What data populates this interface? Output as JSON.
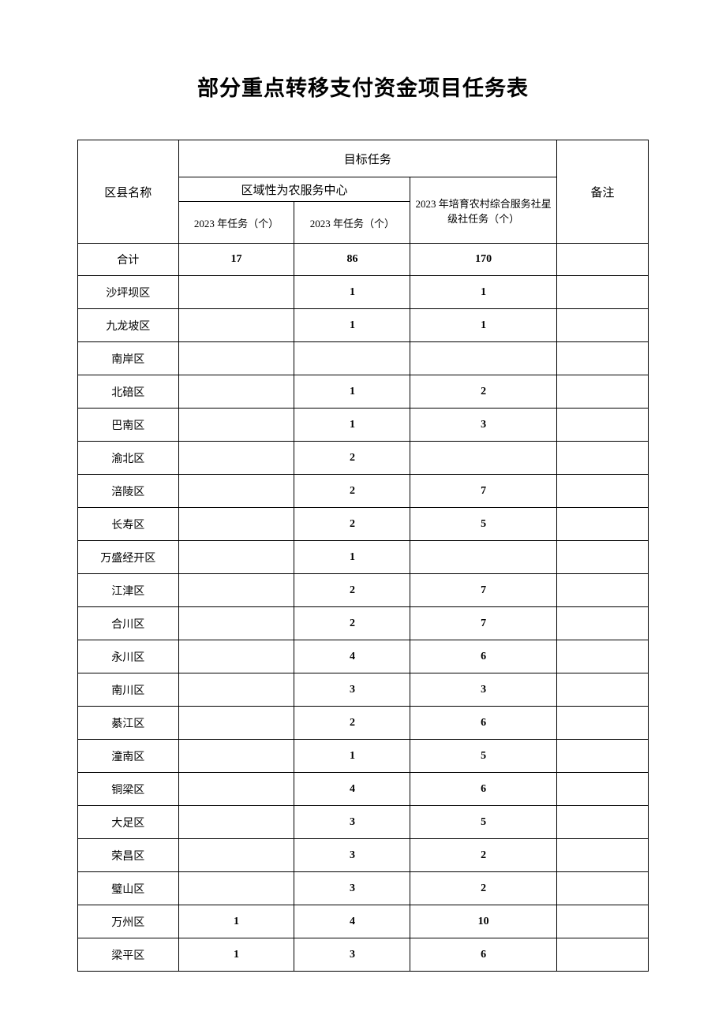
{
  "title": "部分重点转移支付资金项目任务表",
  "colors": {
    "background": "#ffffff",
    "border": "#000000",
    "text": "#000000"
  },
  "typography": {
    "title_fontsize": 27,
    "header_fontsize": 15,
    "subheader_fontsize": 13,
    "cell_fontsize": 14,
    "font_family": "SimSun"
  },
  "headers": {
    "district": "区县名称",
    "target_task": "目标任务",
    "regional_service_center": "区域性为农服务中心",
    "task_2023_a": "2023 年任务（个）",
    "task_2023_b": "2023 年任务（个）",
    "rural_service_task": "2023 年培育农村综合服务社星级社任务（个）",
    "remark": "备注"
  },
  "summary": {
    "label": "合计",
    "v1": "17",
    "v2": "86",
    "v3": "170",
    "note": ""
  },
  "rows": [
    {
      "name": "沙坪坝区",
      "v1": "",
      "v2": "1",
      "v3": "1",
      "note": ""
    },
    {
      "name": "九龙坡区",
      "v1": "",
      "v2": "1",
      "v3": "1",
      "note": ""
    },
    {
      "name": "南岸区",
      "v1": "",
      "v2": "",
      "v3": "",
      "note": ""
    },
    {
      "name": "北碚区",
      "v1": "",
      "v2": "1",
      "v3": "2",
      "note": ""
    },
    {
      "name": "巴南区",
      "v1": "",
      "v2": "1",
      "v3": "3",
      "note": ""
    },
    {
      "name": "渝北区",
      "v1": "",
      "v2": "2",
      "v3": "",
      "note": ""
    },
    {
      "name": "涪陵区",
      "v1": "",
      "v2": "2",
      "v3": "7",
      "note": ""
    },
    {
      "name": "长寿区",
      "v1": "",
      "v2": "2",
      "v3": "5",
      "note": ""
    },
    {
      "name": "万盛经开区",
      "v1": "",
      "v2": "1",
      "v3": "",
      "note": ""
    },
    {
      "name": "江津区",
      "v1": "",
      "v2": "2",
      "v3": "7",
      "note": ""
    },
    {
      "name": "合川区",
      "v1": "",
      "v2": "2",
      "v3": "7",
      "note": ""
    },
    {
      "name": "永川区",
      "v1": "",
      "v2": "4",
      "v3": "6",
      "note": ""
    },
    {
      "name": "南川区",
      "v1": "",
      "v2": "3",
      "v3": "3",
      "note": ""
    },
    {
      "name": "綦江区",
      "v1": "",
      "v2": "2",
      "v3": "6",
      "note": ""
    },
    {
      "name": "潼南区",
      "v1": "",
      "v2": "1",
      "v3": "5",
      "note": ""
    },
    {
      "name": "铜梁区",
      "v1": "",
      "v2": "4",
      "v3": "6",
      "note": ""
    },
    {
      "name": "大足区",
      "v1": "",
      "v2": "3",
      "v3": "5",
      "note": ""
    },
    {
      "name": "荣昌区",
      "v1": "",
      "v2": "3",
      "v3": "2",
      "note": ""
    },
    {
      "name": "璧山区",
      "v1": "",
      "v2": "3",
      "v3": "2",
      "note": ""
    },
    {
      "name": "万州区",
      "v1": "1",
      "v2": "4",
      "v3": "10",
      "note": ""
    },
    {
      "name": "梁平区",
      "v1": "1",
      "v2": "3",
      "v3": "6",
      "note": ""
    }
  ]
}
